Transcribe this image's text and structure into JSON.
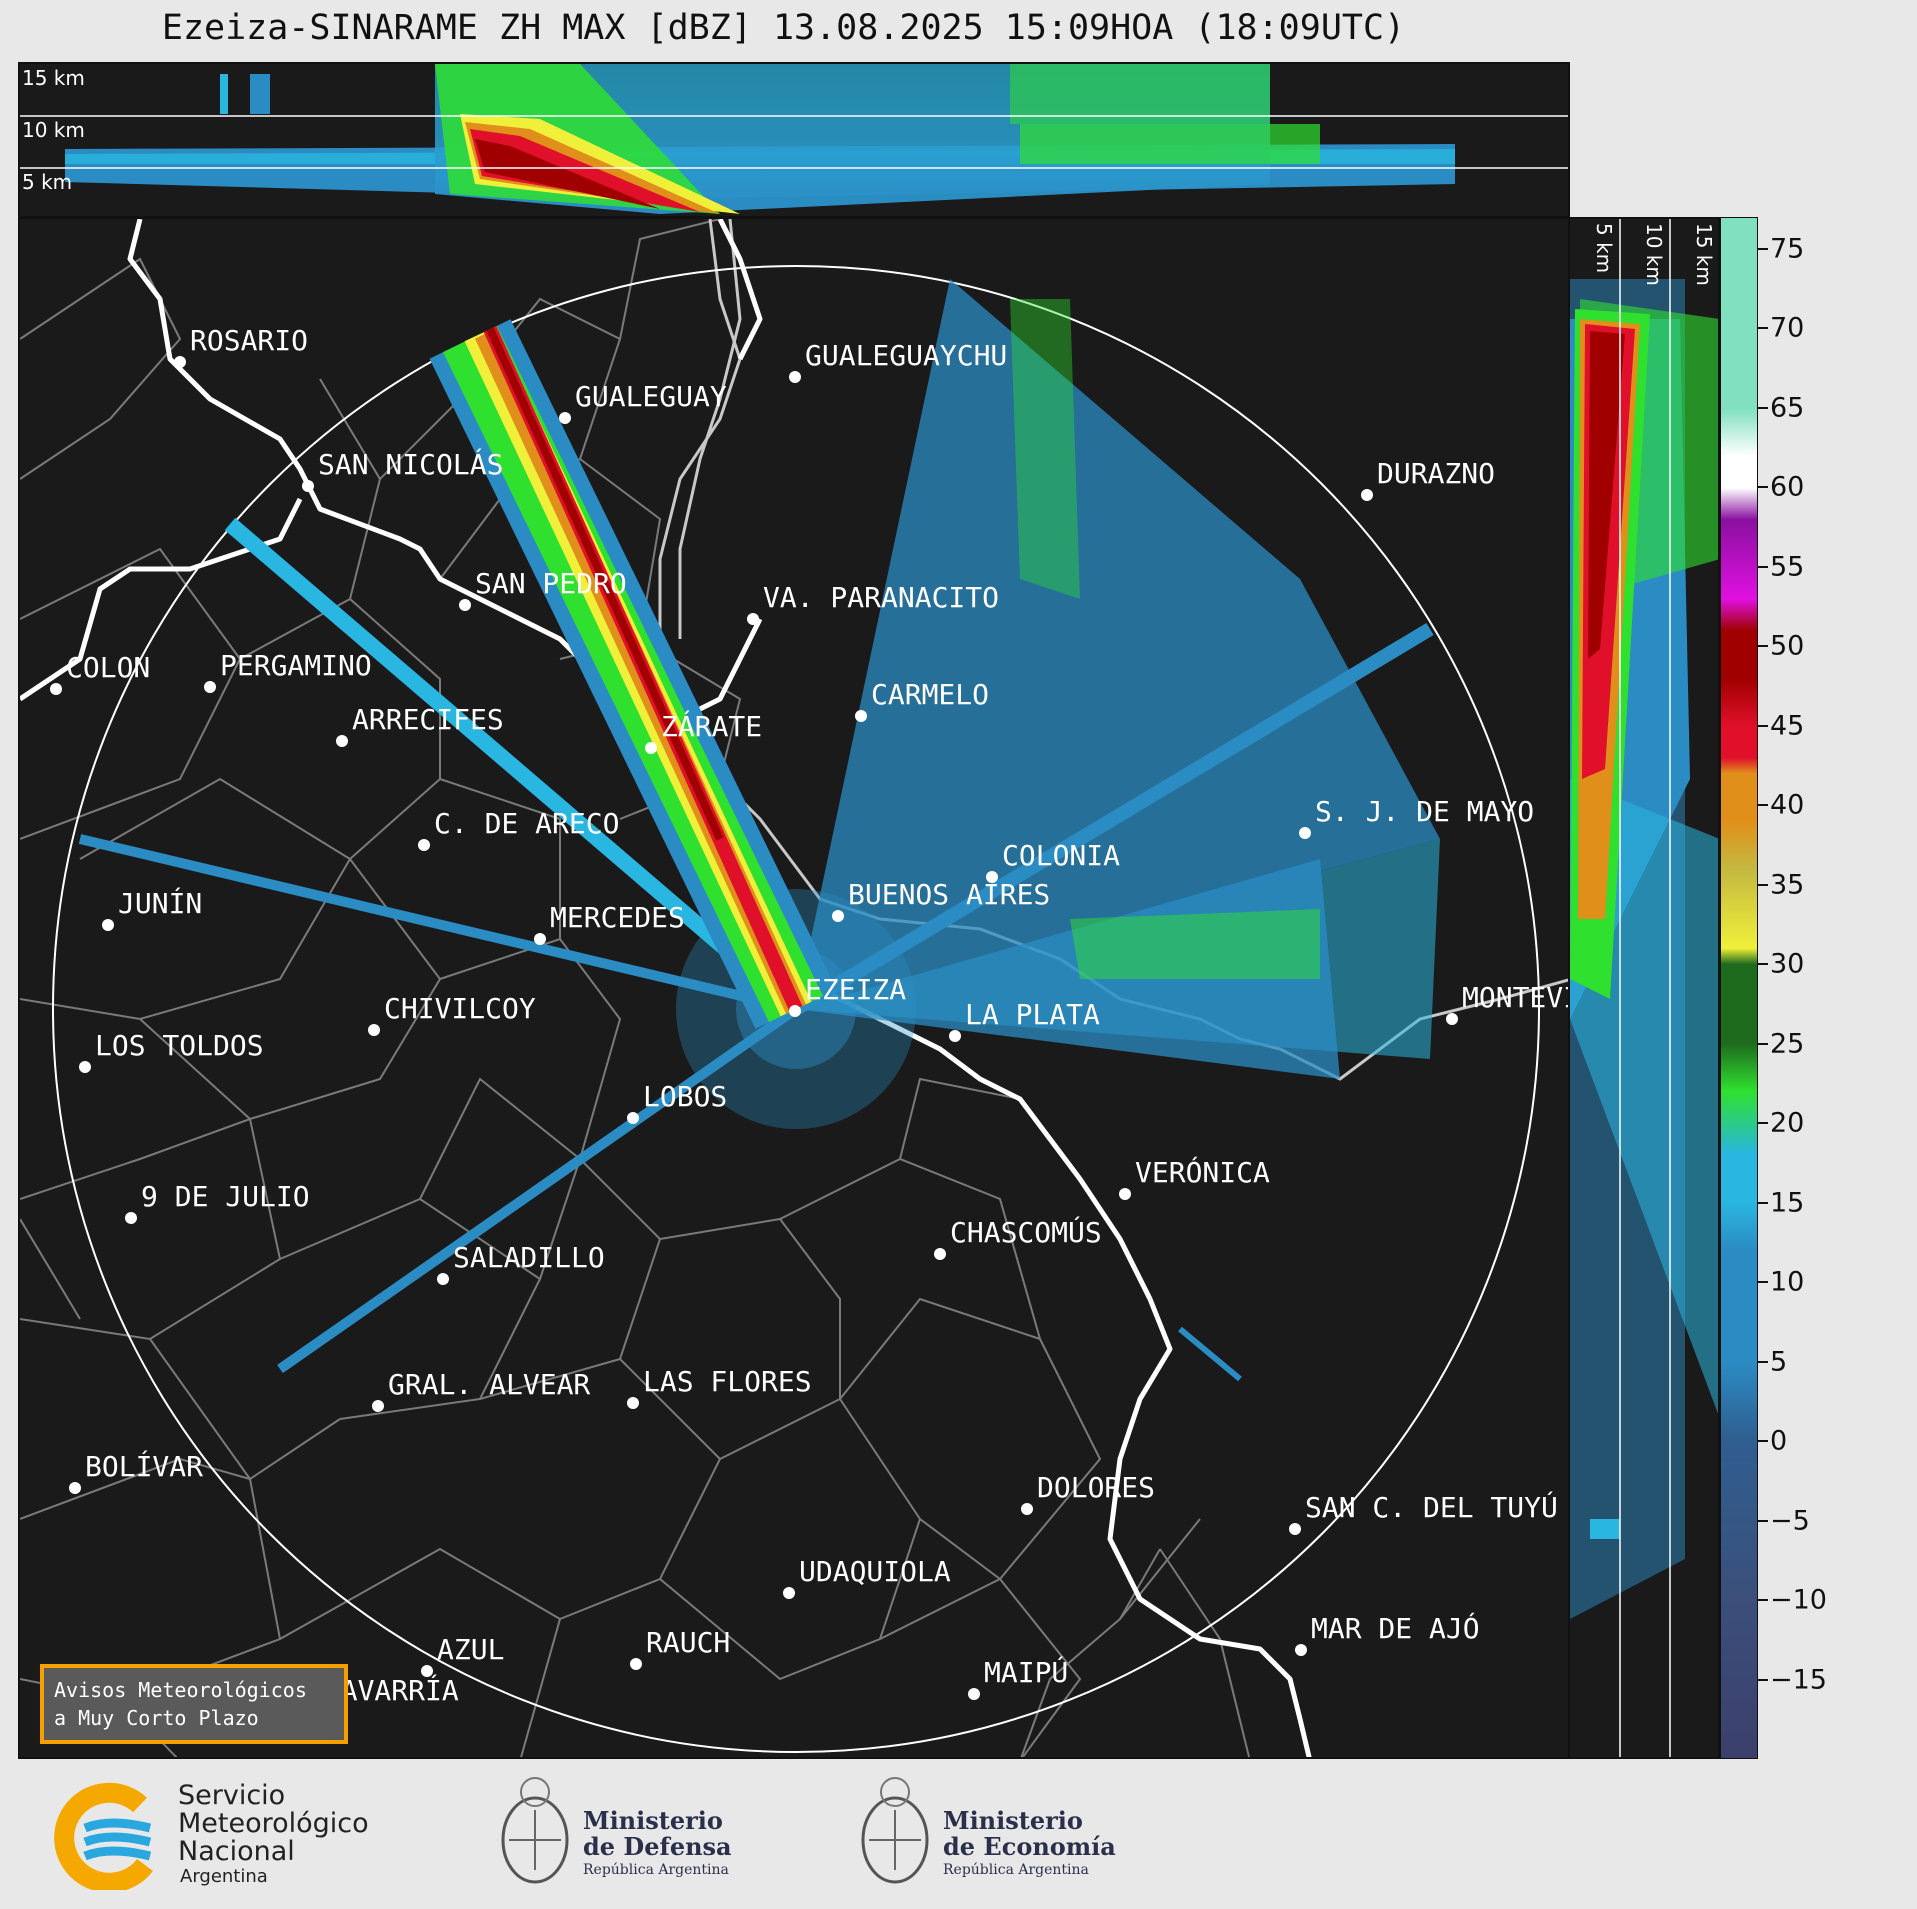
{
  "title": "Ezeiza-SINARAME ZH MAX [dBZ] 13.08.2025 15:09HOA (18:09UTC)",
  "top_panel": {
    "altitude_labels": [
      "15 km",
      "10 km",
      "5 km"
    ]
  },
  "right_panel": {
    "altitude_labels": [
      "5 km",
      "10 km",
      "15 km"
    ]
  },
  "colorbar": {
    "unit": "dBZ",
    "ticks": [
      "75",
      "70",
      "65",
      "60",
      "55",
      "50",
      "45",
      "40",
      "35",
      "30",
      "25",
      "20",
      "15",
      "10",
      "5",
      "0",
      "−5",
      "−10",
      "−15"
    ],
    "tick_values": [
      75,
      70,
      65,
      60,
      55,
      50,
      45,
      40,
      35,
      30,
      25,
      20,
      15,
      10,
      5,
      0,
      -5,
      -10,
      -15
    ],
    "range": [
      -20,
      77
    ],
    "colors": {
      "low": "#3b3f6b",
      "blue": "#2b8cc4",
      "cyan": "#29b6e0",
      "green": "#2fe02f",
      "dark_green": "#1e6b1e",
      "yellow": "#f0f03a",
      "olive": "#c4b840",
      "orange": "#e0901a",
      "red": "#e0102a",
      "dark_red": "#a00000",
      "magenta": "#e010e0",
      "purple": "#8a10a0",
      "white": "#ffffff",
      "mint": "#80e0c0"
    }
  },
  "cities": [
    {
      "name": "ROSARIO"
    },
    {
      "name": "GUALEGUAYCHU"
    },
    {
      "name": "GUALEGUAY"
    },
    {
      "name": "SAN NICOLÁS"
    },
    {
      "name": "DURAZNO"
    },
    {
      "name": "SAN PEDRO"
    },
    {
      "name": "VA. PARANACITO"
    },
    {
      "name": "COLON"
    },
    {
      "name": "PERGAMINO"
    },
    {
      "name": "CARMELO"
    },
    {
      "name": "ARRECIFES"
    },
    {
      "name": "ZÁRATE"
    },
    {
      "name": "S. J. DE MAYO"
    },
    {
      "name": "C. DE ARECO"
    },
    {
      "name": "COLONIA"
    },
    {
      "name": "JUNÍN"
    },
    {
      "name": "BUENOS AIRES"
    },
    {
      "name": "MERCEDES"
    },
    {
      "name": "MONTEVIDEO"
    },
    {
      "name": "EZEIZA"
    },
    {
      "name": "CHIVILCOY"
    },
    {
      "name": "LA PLATA"
    },
    {
      "name": "LOS TOLDOS"
    },
    {
      "name": "LOBOS"
    },
    {
      "name": "VERÓNICA"
    },
    {
      "name": "9 DE JULIO"
    },
    {
      "name": "CHASCOMÚS"
    },
    {
      "name": "SALADILLO"
    },
    {
      "name": "GRAL. ALVEAR"
    },
    {
      "name": "LAS FLORES"
    },
    {
      "name": "BOLÍVAR"
    },
    {
      "name": "DOLORES"
    },
    {
      "name": "SAN C. DEL TUYÚ"
    },
    {
      "name": "UDAQUIOLA"
    },
    {
      "name": "MAR DE AJÓ"
    },
    {
      "name": "AZUL"
    },
    {
      "name": "RAUCH"
    },
    {
      "name": "OLAVARRÍA"
    },
    {
      "name": "MAIPÚ"
    }
  ],
  "avisos": {
    "line1": "Avisos Meteorológicos",
    "line2": "a Muy Corto Plazo"
  },
  "logos": {
    "smn": {
      "line1": "Servicio",
      "line2": "Meteorológico",
      "line3": "Nacional",
      "line4": "Argentina"
    },
    "defensa": {
      "line1": "Ministerio",
      "line2": "de Defensa",
      "line3": "República Argentina"
    },
    "economia": {
      "line1": "Ministerio",
      "line2": "de Economía",
      "line3": "República Argentina"
    }
  }
}
